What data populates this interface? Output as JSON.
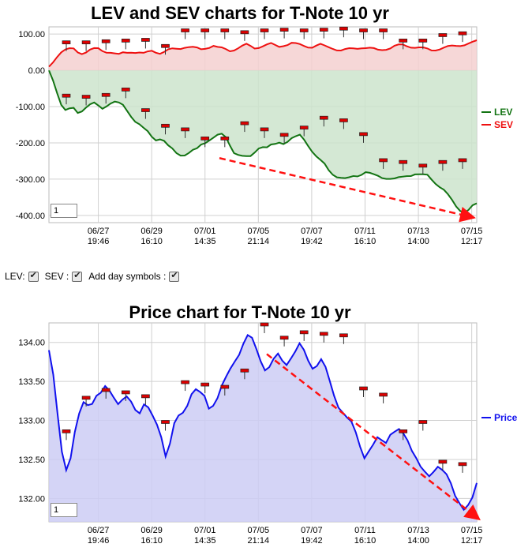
{
  "controls": {
    "lev_label": "LEV:",
    "sev_label": "SEV :",
    "day_symbols_label": "Add day symbols :",
    "lev_checked": true,
    "sev_checked": true,
    "day_symbols_checked": true
  },
  "chart_data": [
    {
      "type": "area",
      "title": "LEV and SEV charts for T-Note 10 yr",
      "x_ticks": [
        {
          "date": "06/27",
          "time": "19:46"
        },
        {
          "date": "06/29",
          "time": "16:10"
        },
        {
          "date": "07/01",
          "time": "14:35"
        },
        {
          "date": "07/05",
          "time": "21:14"
        },
        {
          "date": "07/07",
          "time": "19:42"
        },
        {
          "date": "07/11",
          "time": "16:10"
        },
        {
          "date": "07/13",
          "time": "14:00"
        },
        {
          "date": "07/15",
          "time": "12:17"
        }
      ],
      "y_ticks": [
        "100.00",
        "0.00",
        "-100.00",
        "-200.00",
        "-300.00",
        "-400.00"
      ],
      "ylim": [
        -420,
        120
      ],
      "zoom_value": "1",
      "grid": true,
      "legend_position": "right",
      "series": [
        {
          "name": "LEV",
          "color": "#137413",
          "fill": "#cce4cc",
          "values": [
            0,
            -25,
            -60,
            -95,
            -112,
            -108,
            -104,
            -115,
            -110,
            -102,
            -96,
            -92,
            -98,
            -104,
            -96,
            -90,
            -88,
            -92,
            -97,
            -110,
            -125,
            -140,
            -150,
            -162,
            -170,
            -182,
            -190,
            -188,
            -195,
            -210,
            -218,
            -228,
            -232,
            -232,
            -228,
            -222,
            -218,
            -205,
            -198,
            -190,
            -185,
            -180,
            -178,
            -185,
            -205,
            -225,
            -232,
            -238,
            -240,
            -238,
            -225,
            -212,
            -210,
            -214,
            -208,
            -205,
            -198,
            -200,
            -195,
            -188,
            -185,
            -180,
            -190,
            -205,
            -222,
            -238,
            -250,
            -260,
            -275,
            -285,
            -292,
            -296,
            -300,
            -298,
            -292,
            -290,
            -285,
            -280,
            -285,
            -290,
            -292,
            -295,
            -296,
            -298,
            -300,
            -298,
            -295,
            -290,
            -288,
            -285,
            -288,
            -290,
            -290,
            -300,
            -310,
            -320,
            -330,
            -345,
            -360,
            -375,
            -385,
            -390,
            -385,
            -375,
            -370
          ]
        },
        {
          "name": "SEV",
          "color": "#ee1111",
          "fill": "#f5d0d0",
          "values": [
            10,
            25,
            40,
            50,
            55,
            58,
            60,
            52,
            48,
            50,
            55,
            58,
            60,
            55,
            52,
            50,
            45,
            42,
            48,
            50,
            52,
            50,
            48,
            45,
            50,
            55,
            52,
            48,
            50,
            55,
            58,
            60,
            62,
            65,
            64,
            62,
            60,
            58,
            62,
            65,
            68,
            62,
            60,
            58,
            55,
            58,
            62,
            66,
            70,
            66,
            62,
            65,
            68,
            70,
            72,
            68,
            66,
            70,
            72,
            75,
            72,
            70,
            68,
            66,
            65,
            68,
            70,
            66,
            64,
            62,
            58,
            55,
            56,
            58,
            60,
            62,
            64,
            62,
            60,
            58,
            56,
            58,
            60,
            62,
            66,
            68,
            70,
            68,
            66,
            64,
            62,
            60,
            58,
            56,
            58,
            60,
            62,
            64,
            66,
            68,
            70,
            72,
            74,
            76,
            80
          ]
        }
      ],
      "day_symbol_values": {
        "LEV": [
          -72,
          -75,
          -70,
          -55,
          -112,
          -155,
          -165,
          -190,
          -190,
          -148,
          -165,
          -180,
          -160,
          -133,
          -140,
          -178,
          -250,
          -255,
          -265,
          -255,
          -250
        ],
        "SEV": [
          75,
          75,
          78,
          80,
          82,
          65,
          108,
          108,
          108,
          103,
          108,
          110,
          108,
          110,
          113,
          108,
          108,
          80,
          80,
          95,
          100
        ]
      }
    },
    {
      "type": "area",
      "title": "Price chart for T-Note 10 yr",
      "x_ticks": [
        {
          "date": "06/27",
          "time": "19:46"
        },
        {
          "date": "06/29",
          "time": "16:10"
        },
        {
          "date": "07/01",
          "time": "14:35"
        },
        {
          "date": "07/05",
          "time": "21:14"
        },
        {
          "date": "07/07",
          "time": "19:42"
        },
        {
          "date": "07/11",
          "time": "16:10"
        },
        {
          "date": "07/13",
          "time": "14:00"
        },
        {
          "date": "07/15",
          "time": "12:17"
        }
      ],
      "y_ticks": [
        "134.00",
        "133.50",
        "133.00",
        "132.50",
        "132.00"
      ],
      "ylim": [
        131.7,
        134.25
      ],
      "zoom_value": "1",
      "grid": true,
      "legend_position": "right",
      "series": [
        {
          "name": "Price",
          "color": "#1111ee",
          "fill": "#ccccf5",
          "values": [
            133.9,
            133.6,
            133.1,
            132.6,
            132.35,
            132.5,
            132.85,
            133.1,
            133.25,
            133.2,
            133.2,
            133.3,
            133.35,
            133.45,
            133.4,
            133.3,
            133.2,
            133.25,
            133.3,
            133.25,
            133.15,
            133.1,
            133.2,
            133.15,
            133.05,
            132.95,
            132.8,
            132.55,
            132.7,
            132.95,
            133.05,
            133.1,
            133.2,
            133.35,
            133.4,
            133.35,
            133.3,
            133.15,
            133.2,
            133.3,
            133.45,
            133.55,
            133.65,
            133.75,
            133.85,
            134.0,
            134.1,
            134.05,
            133.9,
            133.75,
            133.65,
            133.7,
            133.8,
            133.85,
            133.75,
            133.7,
            133.8,
            133.9,
            134.0,
            133.9,
            133.75,
            133.65,
            133.7,
            133.8,
            133.7,
            133.5,
            133.3,
            133.15,
            133.1,
            133.05,
            133.0,
            132.85,
            132.65,
            132.5,
            132.6,
            132.7,
            132.8,
            132.75,
            132.7,
            132.8,
            132.85,
            132.9,
            132.85,
            132.75,
            132.6,
            132.5,
            132.4,
            132.35,
            132.3,
            132.35,
            132.4,
            132.35,
            132.3,
            132.2,
            132.05,
            131.95,
            131.85,
            131.9,
            132.0,
            132.2
          ]
        }
      ],
      "day_symbol_values": {
        "Price": [
          132.85,
          133.28,
          133.38,
          133.35,
          133.3,
          132.97,
          133.48,
          133.45,
          133.42,
          133.63,
          134.22,
          134.05,
          134.12,
          134.1,
          134.08,
          133.4,
          133.32,
          132.85,
          132.97,
          132.46,
          132.43
        ]
      }
    }
  ]
}
